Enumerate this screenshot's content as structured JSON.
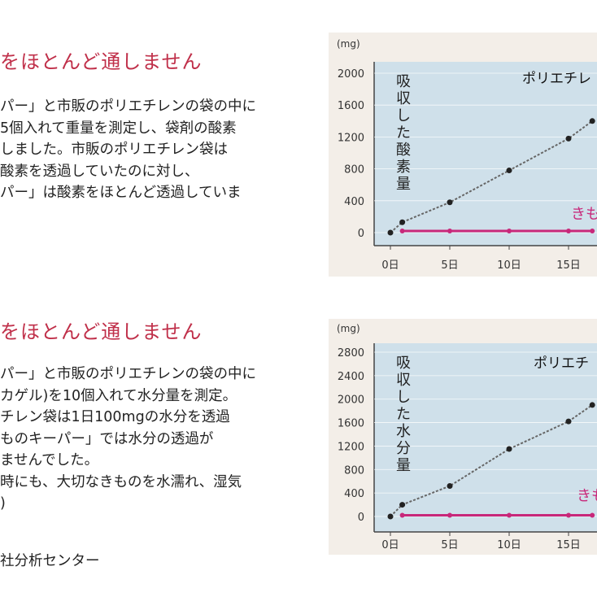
{
  "section1": {
    "heading": "をほとんど通しません",
    "lines": [
      "パー」と市販のポリエチレンの袋の中に",
      "5個入れて重量を測定し、袋剤の酸素",
      "しました。市販のポリエチレン袋は",
      "酸素を透過していたのに対し、",
      "パー」は酸素をほとんど透過していま"
    ]
  },
  "section2": {
    "heading": "をほとんど通しません",
    "lines": [
      "パー」と市販のポリエチレンの袋の中に",
      "カゲル)を10個入れて水分量を測定。",
      "チレン袋は1日100mgの水分を透過",
      "ものキーパー」では水分の透過が",
      "ませんでした。",
      "時にも、大切なきものを水濡れ、湿気",
      ")"
    ]
  },
  "footer": "社分析センター",
  "colors": {
    "heading": "#c0304a",
    "poly_line": "#666666",
    "keeper_line": "#c8287a",
    "plot_bg": "#cfe0ea"
  },
  "chart_data": [
    {
      "type": "line",
      "unit_label": "(mg)",
      "ylabel": "吸収した酸素量",
      "yticks": [
        0,
        400,
        800,
        1200,
        1600,
        2000
      ],
      "ylim": [
        0,
        2000
      ],
      "xticks": [
        "0日",
        "5日",
        "10日",
        "15日"
      ],
      "xlim": [
        0,
        16.5
      ],
      "series": [
        {
          "name": "ポリエチレ",
          "x": [
            0,
            1,
            5,
            10,
            15,
            17
          ],
          "y": [
            0,
            130,
            380,
            780,
            1180,
            1400
          ]
        },
        {
          "name": "きも",
          "x": [
            1,
            5,
            10,
            15,
            17
          ],
          "y": [
            20,
            20,
            20,
            20,
            20
          ]
        }
      ]
    },
    {
      "type": "line",
      "unit_label": "(mg)",
      "ylabel": "吸収した水分量",
      "yticks": [
        0,
        400,
        800,
        1200,
        1600,
        2000,
        2400,
        2800
      ],
      "ylim": [
        0,
        2800
      ],
      "xticks": [
        "0日",
        "5日",
        "10日",
        "15日"
      ],
      "xlim": [
        0,
        16.5
      ],
      "series": [
        {
          "name": "ポリエチ",
          "x": [
            0,
            1,
            5,
            10,
            15,
            17
          ],
          "y": [
            0,
            200,
            520,
            1150,
            1620,
            1900
          ]
        },
        {
          "name": "きも",
          "x": [
            1,
            5,
            10,
            15,
            17
          ],
          "y": [
            20,
            20,
            20,
            20,
            20
          ]
        }
      ]
    }
  ]
}
